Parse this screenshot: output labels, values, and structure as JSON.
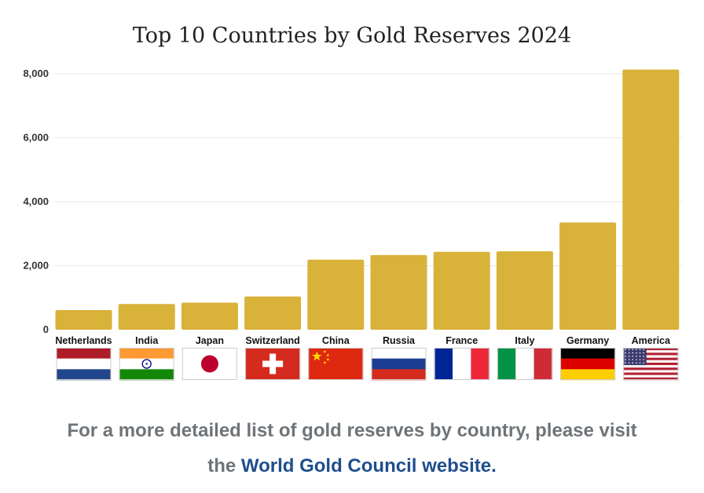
{
  "chart_data": {
    "type": "bar",
    "title": "Top 10 Countries by Gold Reserves 2024",
    "categories": [
      "Netherlands",
      "India",
      "Japan",
      "Switzerland",
      "China",
      "Russia",
      "France",
      "Italy",
      "Germany",
      "America"
    ],
    "values": [
      612,
      803,
      846,
      1040,
      2191,
      2333,
      2437,
      2452,
      3352,
      8133
    ],
    "ylim": [
      0,
      8000
    ],
    "yticks": [
      0,
      2000,
      4000,
      6000,
      8000
    ],
    "ytick_labels": [
      "0",
      "2,000",
      "4,000",
      "6,000",
      "8,000"
    ],
    "xlabel": "",
    "ylabel": "",
    "grid": true,
    "bar_color": "#d9b23a",
    "grid_color": "#e6e6e6"
  },
  "flags": [
    "netherlands-flag-icon",
    "india-flag-icon",
    "japan-flag-icon",
    "switzerland-flag-icon",
    "china-flag-icon",
    "russia-flag-icon",
    "france-flag-icon",
    "italy-flag-icon",
    "germany-flag-icon",
    "usa-flag-icon"
  ],
  "footer": {
    "line1": "For a more detailed list of gold reserves by country, please visit",
    "line2_prefix": "the ",
    "link_text": "World Gold Council website."
  },
  "colors": {
    "link": "#1f4e8c",
    "footer_text": "#6f7478"
  }
}
